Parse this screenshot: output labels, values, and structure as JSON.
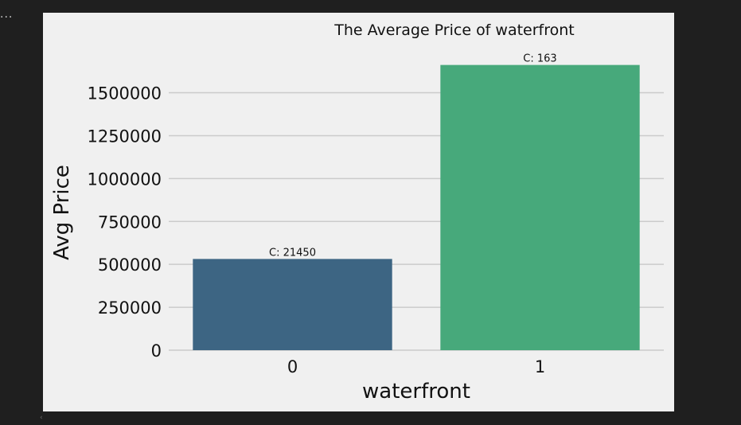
{
  "notebook": {
    "cell_indicator": "..."
  },
  "chart_data": {
    "type": "bar",
    "title": "The Average Price of waterfront",
    "xlabel": "waterfront",
    "ylabel": "Avg Price",
    "categories": [
      "0",
      "1"
    ],
    "values": [
      531560,
      1661880
    ],
    "annotations": [
      "C: 21450",
      "C: 163"
    ],
    "colors": [
      "#3d6583",
      "#47a97b"
    ],
    "ylim": [
      0,
      1790000
    ],
    "yticks": [
      0,
      250000,
      500000,
      750000,
      1000000,
      1250000,
      1500000
    ],
    "grid": true,
    "grid_axis": "y"
  }
}
